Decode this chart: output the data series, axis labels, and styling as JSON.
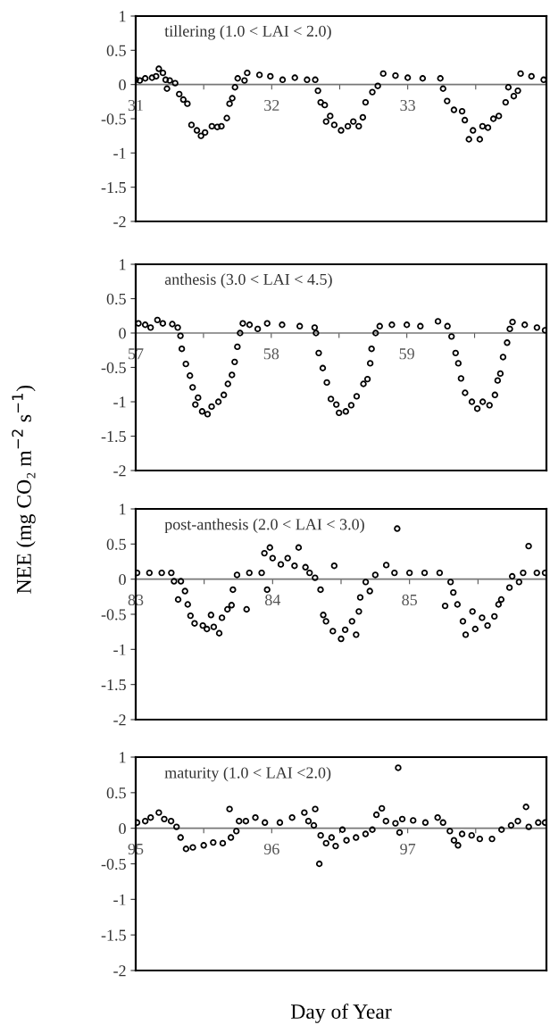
{
  "chart_data": [
    {
      "type": "scatter",
      "title": "tillering (1.0 < LAI < 2.0)",
      "marker": "circle",
      "xlim": [
        31,
        34.02
      ],
      "ylim": [
        -2,
        1
      ],
      "xticks": [
        31,
        {
          "value": 31.5,
          "label": null
        },
        32,
        {
          "value": 32.5,
          "label": null
        },
        33,
        {
          "value": 33.5,
          "label": null
        }
      ],
      "yticks": [
        -2,
        -1.5,
        -1,
        -0.5,
        0,
        0.5,
        1
      ],
      "series": [
        {
          "color": "#000000",
          "x": [
            31.0,
            31.03,
            31.07,
            31.12,
            31.15,
            31.17,
            31.2,
            31.22,
            31.23,
            31.25,
            31.29,
            31.32,
            31.35,
            31.38,
            31.41,
            31.45,
            31.48,
            31.51,
            31.56,
            31.6,
            31.63,
            31.67,
            31.69,
            31.71,
            31.73,
            31.75,
            31.8,
            31.82,
            31.91,
            31.99,
            32.08,
            32.17,
            32.26,
            32.32,
            32.34,
            32.36,
            32.39,
            32.4,
            32.43,
            32.46,
            32.51,
            32.56,
            32.6,
            32.64,
            32.67,
            32.69,
            32.74,
            32.78,
            32.82,
            32.91,
            33.0,
            33.11,
            33.24,
            33.26,
            33.29,
            33.34,
            33.4,
            33.42,
            33.45,
            33.48,
            33.53,
            33.55,
            33.59,
            33.63,
            33.67,
            33.72,
            33.74,
            33.78,
            33.81,
            33.83,
            33.91,
            34.0
          ],
          "values": [
            0.07,
            0.06,
            0.09,
            0.1,
            0.12,
            0.23,
            0.17,
            0.07,
            -0.06,
            0.06,
            0.02,
            -0.14,
            -0.22,
            -0.28,
            -0.59,
            -0.67,
            -0.75,
            -0.7,
            -0.61,
            -0.62,
            -0.61,
            -0.49,
            -0.28,
            -0.2,
            -0.04,
            0.09,
            0.06,
            0.17,
            0.14,
            0.12,
            0.07,
            0.1,
            0.07,
            0.07,
            -0.09,
            -0.26,
            -0.3,
            -0.54,
            -0.46,
            -0.59,
            -0.67,
            -0.61,
            -0.54,
            -0.61,
            -0.48,
            -0.26,
            -0.11,
            -0.02,
            0.16,
            0.13,
            0.1,
            0.09,
            0.09,
            -0.06,
            -0.24,
            -0.37,
            -0.39,
            -0.52,
            -0.8,
            -0.67,
            -0.8,
            -0.61,
            -0.63,
            -0.5,
            -0.46,
            -0.26,
            -0.04,
            -0.17,
            -0.09,
            0.16,
            0.12,
            0.07
          ]
        }
      ]
    },
    {
      "type": "scatter",
      "title": "anthesis (3.0 < LAI < 4.5)",
      "ylabel": "NEE (mg CO₂ m$^{−2}$ s$^{−1}$)",
      "marker": "circle",
      "xlim": [
        57,
        60.03
      ],
      "ylim": [
        -2,
        1
      ],
      "xticks": [
        57,
        {
          "value": 57.5,
          "label": null
        },
        58,
        {
          "value": 58.5,
          "label": null
        },
        59,
        {
          "value": 59.5,
          "label": null
        }
      ],
      "yticks": [
        -2,
        -1.5,
        -1,
        -0.5,
        0,
        0.5,
        1
      ],
      "series": [
        {
          "color": "#000000",
          "x": [
            57.02,
            57.07,
            57.11,
            57.16,
            57.2,
            57.27,
            57.31,
            57.33,
            57.34,
            57.37,
            57.4,
            57.42,
            57.44,
            57.46,
            57.49,
            57.53,
            57.56,
            57.61,
            57.65,
            57.68,
            57.71,
            57.73,
            57.75,
            57.77,
            57.79,
            57.84,
            57.9,
            57.97,
            58.08,
            58.21,
            58.32,
            58.33,
            58.35,
            58.38,
            58.41,
            58.44,
            58.48,
            58.5,
            58.55,
            58.59,
            58.63,
            58.68,
            58.71,
            58.73,
            58.74,
            58.77,
            58.8,
            58.89,
            59.0,
            59.1,
            59.23,
            59.3,
            59.33,
            59.36,
            59.38,
            59.4,
            59.43,
            59.48,
            59.52,
            59.56,
            59.61,
            59.65,
            59.67,
            59.69,
            59.71,
            59.74,
            59.76,
            59.78,
            59.87,
            59.96,
            60.02
          ],
          "values": [
            0.14,
            0.12,
            0.08,
            0.19,
            0.14,
            0.13,
            0.08,
            -0.04,
            -0.23,
            -0.45,
            -0.62,
            -0.79,
            -1.04,
            -0.94,
            -1.14,
            -1.18,
            -1.07,
            -1.0,
            -0.9,
            -0.74,
            -0.61,
            -0.42,
            -0.2,
            0.0,
            0.14,
            0.12,
            0.06,
            0.14,
            0.12,
            0.1,
            0.08,
            0.0,
            -0.29,
            -0.51,
            -0.72,
            -0.96,
            -1.04,
            -1.16,
            -1.14,
            -1.05,
            -0.92,
            -0.74,
            -0.67,
            -0.44,
            -0.23,
            0.0,
            0.1,
            0.12,
            0.12,
            0.1,
            0.17,
            0.1,
            -0.05,
            -0.29,
            -0.44,
            -0.66,
            -0.87,
            -1.0,
            -1.1,
            -1.0,
            -1.05,
            -0.9,
            -0.69,
            -0.59,
            -0.35,
            -0.14,
            0.06,
            0.16,
            0.12,
            0.08,
            0.04
          ]
        }
      ]
    },
    {
      "type": "scatter",
      "title": "post-anthesis (2.0 < LAI < 3.0)",
      "marker": "circle",
      "xlim": [
        83,
        86.0
      ],
      "ylim": [
        -2,
        1
      ],
      "xticks": [
        83,
        {
          "value": 83.5,
          "label": null
        },
        84,
        {
          "value": 84.5,
          "label": null
        },
        85,
        {
          "value": 85.5,
          "label": null
        }
      ],
      "yticks": [
        -2,
        -1.5,
        -1,
        -0.5,
        0,
        0.5,
        1
      ],
      "series": [
        {
          "color": "#000000",
          "x": [
            83.01,
            83.1,
            83.19,
            83.26,
            83.28,
            83.31,
            83.33,
            83.36,
            83.38,
            83.4,
            83.43,
            83.49,
            83.52,
            83.55,
            83.57,
            83.61,
            83.63,
            83.67,
            83.7,
            83.71,
            83.74,
            83.81,
            83.83,
            83.92,
            83.94,
            83.96,
            83.98,
            84.0,
            84.06,
            84.11,
            84.16,
            84.19,
            84.24,
            84.27,
            84.31,
            84.35,
            84.37,
            84.39,
            84.45,
            84.44,
            84.5,
            84.53,
            84.58,
            84.61,
            84.63,
            84.64,
            84.68,
            84.71,
            84.75,
            84.83,
            84.89,
            84.91,
            85.0,
            85.11,
            85.22,
            85.26,
            85.3,
            85.32,
            85.35,
            85.39,
            85.41,
            85.46,
            85.48,
            85.53,
            85.57,
            85.62,
            85.65,
            85.67,
            85.73,
            85.75,
            85.8,
            85.83,
            85.87,
            85.93,
            85.99
          ],
          "values": [
            0.09,
            0.09,
            0.09,
            0.09,
            -0.03,
            -0.29,
            -0.03,
            -0.17,
            -0.36,
            -0.52,
            -0.63,
            -0.66,
            -0.71,
            -0.51,
            -0.68,
            -0.77,
            -0.55,
            -0.43,
            -0.37,
            -0.15,
            0.06,
            -0.43,
            0.09,
            0.09,
            0.37,
            -0.15,
            0.45,
            0.3,
            0.21,
            0.3,
            0.19,
            0.45,
            0.17,
            0.09,
            0.02,
            -0.15,
            -0.51,
            -0.6,
            0.19,
            -0.74,
            -0.85,
            -0.72,
            -0.6,
            -0.79,
            -0.46,
            -0.26,
            -0.04,
            -0.17,
            0.06,
            0.2,
            0.09,
            0.72,
            0.09,
            0.09,
            0.09,
            -0.38,
            -0.04,
            -0.19,
            -0.36,
            -0.6,
            -0.79,
            -0.46,
            -0.71,
            -0.55,
            -0.66,
            -0.53,
            -0.36,
            -0.29,
            -0.12,
            0.04,
            -0.04,
            0.09,
            0.47,
            0.09,
            0.09
          ]
        }
      ]
    },
    {
      "type": "scatter",
      "title": "maturity (1.0 < LAI <2.0)",
      "xlabel": "Day of Year",
      "marker": "circle",
      "xlim": [
        95,
        98.02
      ],
      "ylim": [
        -2,
        1
      ],
      "xticks": [
        95,
        {
          "value": 95.5,
          "label": null
        },
        96,
        {
          "value": 96.5,
          "label": null
        },
        97,
        {
          "value": 97.5,
          "label": null
        }
      ],
      "yticks": [
        -2,
        -1.5,
        -1,
        -0.5,
        0,
        0.5,
        1
      ],
      "series": [
        {
          "color": "#000000",
          "x": [
            95.01,
            95.07,
            95.11,
            95.17,
            95.21,
            95.26,
            95.3,
            95.33,
            95.37,
            95.42,
            95.5,
            95.57,
            95.64,
            95.69,
            95.7,
            95.74,
            95.76,
            95.81,
            95.88,
            95.95,
            96.06,
            96.15,
            96.24,
            96.27,
            96.32,
            96.31,
            96.35,
            96.36,
            96.4,
            96.44,
            96.47,
            96.52,
            96.55,
            96.62,
            96.69,
            96.74,
            96.77,
            96.81,
            96.84,
            96.91,
            96.93,
            96.94,
            96.96,
            97.04,
            97.13,
            97.22,
            97.26,
            97.31,
            97.34,
            97.37,
            97.4,
            97.47,
            97.53,
            97.62,
            97.69,
            97.76,
            97.81,
            97.87,
            97.89,
            97.96,
            98.01
          ],
          "values": [
            0.08,
            0.1,
            0.15,
            0.22,
            0.13,
            0.1,
            0.02,
            -0.13,
            -0.29,
            -0.27,
            -0.24,
            -0.2,
            -0.21,
            0.27,
            -0.13,
            -0.04,
            0.1,
            0.1,
            0.15,
            0.08,
            0.08,
            0.15,
            0.22,
            0.1,
            0.27,
            0.04,
            -0.5,
            -0.1,
            -0.21,
            -0.13,
            -0.25,
            -0.02,
            -0.17,
            -0.13,
            -0.08,
            -0.02,
            0.19,
            0.28,
            0.1,
            0.07,
            0.85,
            -0.06,
            0.13,
            0.11,
            0.08,
            0.15,
            0.08,
            -0.04,
            -0.17,
            -0.24,
            -0.08,
            -0.1,
            -0.15,
            -0.15,
            -0.02,
            0.04,
            0.1,
            0.3,
            0.02,
            0.08,
            0.08
          ]
        }
      ]
    }
  ]
}
